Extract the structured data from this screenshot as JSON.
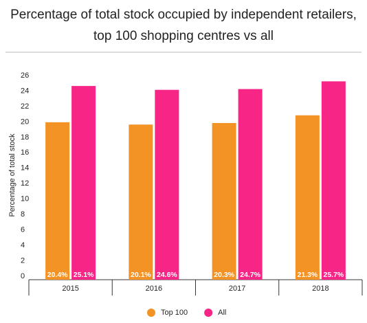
{
  "chart_data": {
    "type": "bar",
    "title": "Percentage of total stock occupied by independent retailers,",
    "subtitle": "top 100 shopping centres vs all",
    "y_label": "Percentage of total stock",
    "categories": [
      "2015",
      "2016",
      "2017",
      "2018"
    ],
    "series": [
      {
        "name": "Top 100",
        "color": "#f39325",
        "values": [
          20.4,
          20.1,
          20.3,
          21.3
        ],
        "value_labels": [
          "20.4%",
          "20.1%",
          "20.3%",
          "21.3%"
        ]
      },
      {
        "name": "All",
        "color": "#f72585",
        "values": [
          25.1,
          24.6,
          24.7,
          25.7
        ],
        "value_labels": [
          "25.1%",
          "24.6%",
          "24.7%",
          "25.7%"
        ]
      }
    ],
    "ylim": [
      0,
      26
    ],
    "yticks": [
      0,
      2,
      4,
      6,
      8,
      10,
      12,
      14,
      16,
      18,
      20,
      22,
      24,
      26
    ],
    "grid": false
  }
}
